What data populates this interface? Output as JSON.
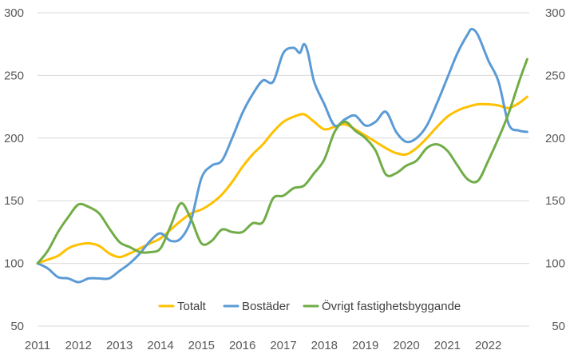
{
  "chart_data": {
    "type": "line",
    "title": "",
    "xlabel": "",
    "ylabel": "",
    "ylim": [
      50,
      300
    ],
    "yticks": [
      50,
      100,
      150,
      200,
      250,
      300
    ],
    "y2ticks": [
      50,
      100,
      150,
      200,
      250,
      300
    ],
    "xlim": [
      2011,
      2023
    ],
    "xticks": [
      "2011",
      "2012",
      "2013",
      "2014",
      "2015",
      "2016",
      "2017",
      "2018",
      "2019",
      "2020",
      "2021",
      "2022"
    ],
    "grid": "horizontal",
    "legend": "bottom-inside",
    "series": [
      {
        "name": "Totalt",
        "color": "#FFC000",
        "x": [
          2011.0,
          2011.25,
          2011.5,
          2011.75,
          2012.0,
          2012.25,
          2012.5,
          2012.75,
          2013.0,
          2013.25,
          2013.5,
          2013.75,
          2014.0,
          2014.25,
          2014.5,
          2014.75,
          2015.0,
          2015.25,
          2015.5,
          2015.75,
          2016.0,
          2016.25,
          2016.5,
          2016.75,
          2017.0,
          2017.25,
          2017.5,
          2017.75,
          2018.0,
          2018.25,
          2018.5,
          2018.75,
          2019.0,
          2019.25,
          2019.5,
          2019.75,
          2020.0,
          2020.25,
          2020.5,
          2020.75,
          2021.0,
          2021.25,
          2021.5,
          2021.75,
          2022.0,
          2022.25,
          2022.5,
          2022.75,
          2022.95
        ],
        "values": [
          100,
          103,
          106,
          112,
          115,
          116,
          114,
          108,
          105,
          108,
          112,
          116,
          120,
          127,
          134,
          140,
          143,
          148,
          155,
          165,
          177,
          187,
          195,
          205,
          213,
          217,
          219,
          213,
          207,
          209,
          211,
          207,
          202,
          197,
          192,
          188,
          187,
          192,
          200,
          209,
          217,
          222,
          225,
          227,
          227,
          226,
          224,
          228,
          233
        ]
      },
      {
        "name": "Bostäder",
        "color": "#5B9BD5",
        "x": [
          2011.0,
          2011.25,
          2011.5,
          2011.75,
          2012.0,
          2012.25,
          2012.5,
          2012.75,
          2013.0,
          2013.25,
          2013.5,
          2013.75,
          2014.0,
          2014.25,
          2014.5,
          2014.75,
          2015.0,
          2015.25,
          2015.5,
          2015.75,
          2016.0,
          2016.25,
          2016.5,
          2016.75,
          2017.0,
          2017.25,
          2017.4,
          2017.5,
          2017.6,
          2017.75,
          2018.0,
          2018.25,
          2018.5,
          2018.75,
          2019.0,
          2019.25,
          2019.5,
          2019.75,
          2020.0,
          2020.25,
          2020.5,
          2020.75,
          2021.0,
          2021.25,
          2021.5,
          2021.6,
          2021.75,
          2022.0,
          2022.25,
          2022.5,
          2022.75,
          2022.95
        ],
        "values": [
          100,
          96,
          89,
          88,
          85,
          88,
          88,
          88,
          94,
          100,
          108,
          118,
          124,
          118,
          120,
          135,
          168,
          178,
          182,
          200,
          220,
          235,
          246,
          245,
          268,
          272,
          268,
          275,
          268,
          245,
          227,
          210,
          215,
          218,
          210,
          213,
          221,
          205,
          197,
          200,
          210,
          228,
          248,
          268,
          283,
          287,
          282,
          262,
          245,
          211,
          206,
          205
        ]
      },
      {
        "name": "Övrigt fastighetsbyggande",
        "color": "#70AD47",
        "x": [
          2011.0,
          2011.25,
          2011.5,
          2011.75,
          2012.0,
          2012.25,
          2012.5,
          2012.75,
          2013.0,
          2013.25,
          2013.5,
          2013.75,
          2014.0,
          2014.25,
          2014.5,
          2014.75,
          2015.0,
          2015.25,
          2015.5,
          2015.75,
          2016.0,
          2016.25,
          2016.5,
          2016.75,
          2017.0,
          2017.25,
          2017.5,
          2017.75,
          2018.0,
          2018.25,
          2018.5,
          2018.75,
          2019.0,
          2019.25,
          2019.5,
          2019.75,
          2020.0,
          2020.25,
          2020.5,
          2020.75,
          2021.0,
          2021.25,
          2021.5,
          2021.75,
          2022.0,
          2022.25,
          2022.5,
          2022.75,
          2022.95
        ],
        "values": [
          100,
          110,
          125,
          137,
          147,
          145,
          140,
          128,
          117,
          113,
          109,
          109,
          112,
          130,
          148,
          135,
          116,
          118,
          127,
          125,
          125,
          132,
          133,
          152,
          154,
          160,
          162,
          172,
          183,
          205,
          213,
          206,
          200,
          190,
          171,
          172,
          178,
          182,
          192,
          195,
          190,
          178,
          167,
          166,
          182,
          200,
          220,
          245,
          263
        ]
      }
    ]
  }
}
